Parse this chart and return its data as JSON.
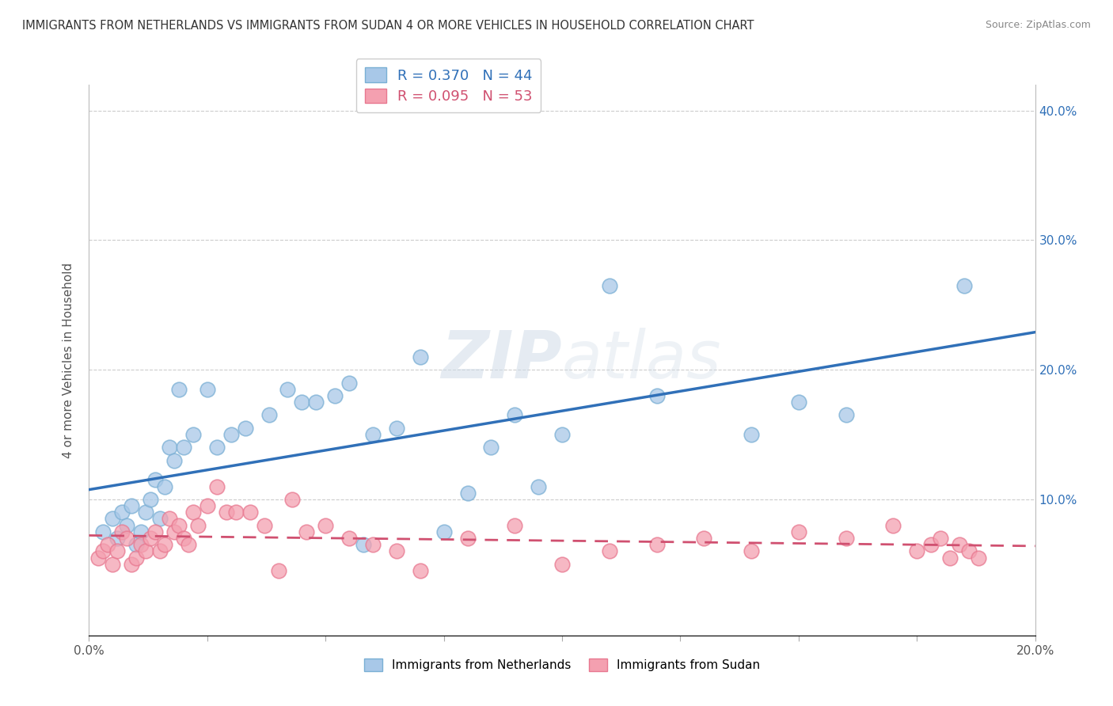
{
  "title": "IMMIGRANTS FROM NETHERLANDS VS IMMIGRANTS FROM SUDAN 4 OR MORE VEHICLES IN HOUSEHOLD CORRELATION CHART",
  "source": "Source: ZipAtlas.com",
  "ylabel": "4 or more Vehicles in Household",
  "xlim": [
    0.0,
    0.2
  ],
  "ylim": [
    -0.005,
    0.42
  ],
  "netherlands_R": 0.37,
  "netherlands_N": 44,
  "sudan_R": 0.095,
  "sudan_N": 53,
  "netherlands_color": "#a8c8e8",
  "sudan_color": "#f4a0b0",
  "netherlands_edge_color": "#7aafd4",
  "sudan_edge_color": "#e87890",
  "netherlands_line_color": "#3070b8",
  "sudan_line_color": "#d05070",
  "watermark_color": "#d0dce8",
  "netherlands_x": [
    0.003,
    0.005,
    0.006,
    0.007,
    0.008,
    0.009,
    0.01,
    0.011,
    0.012,
    0.013,
    0.014,
    0.015,
    0.016,
    0.017,
    0.018,
    0.019,
    0.02,
    0.022,
    0.025,
    0.027,
    0.03,
    0.033,
    0.038,
    0.042,
    0.045,
    0.048,
    0.052,
    0.055,
    0.058,
    0.06,
    0.065,
    0.07,
    0.075,
    0.08,
    0.085,
    0.09,
    0.095,
    0.1,
    0.11,
    0.12,
    0.14,
    0.15,
    0.16,
    0.185
  ],
  "netherlands_y": [
    0.075,
    0.085,
    0.07,
    0.09,
    0.08,
    0.095,
    0.065,
    0.075,
    0.09,
    0.1,
    0.115,
    0.085,
    0.11,
    0.14,
    0.13,
    0.185,
    0.14,
    0.15,
    0.185,
    0.14,
    0.15,
    0.155,
    0.165,
    0.185,
    0.175,
    0.175,
    0.18,
    0.19,
    0.065,
    0.15,
    0.155,
    0.21,
    0.075,
    0.105,
    0.14,
    0.165,
    0.11,
    0.15,
    0.265,
    0.18,
    0.15,
    0.175,
    0.165,
    0.265
  ],
  "sudan_x": [
    0.002,
    0.003,
    0.004,
    0.005,
    0.006,
    0.007,
    0.008,
    0.009,
    0.01,
    0.011,
    0.012,
    0.013,
    0.014,
    0.015,
    0.016,
    0.017,
    0.018,
    0.019,
    0.02,
    0.021,
    0.022,
    0.023,
    0.025,
    0.027,
    0.029,
    0.031,
    0.034,
    0.037,
    0.04,
    0.043,
    0.046,
    0.05,
    0.055,
    0.06,
    0.065,
    0.07,
    0.08,
    0.09,
    0.1,
    0.11,
    0.12,
    0.13,
    0.14,
    0.15,
    0.16,
    0.17,
    0.175,
    0.178,
    0.18,
    0.182,
    0.184,
    0.186,
    0.188
  ],
  "sudan_y": [
    0.055,
    0.06,
    0.065,
    0.05,
    0.06,
    0.075,
    0.07,
    0.05,
    0.055,
    0.065,
    0.06,
    0.07,
    0.075,
    0.06,
    0.065,
    0.085,
    0.075,
    0.08,
    0.07,
    0.065,
    0.09,
    0.08,
    0.095,
    0.11,
    0.09,
    0.09,
    0.09,
    0.08,
    0.045,
    0.1,
    0.075,
    0.08,
    0.07,
    0.065,
    0.06,
    0.045,
    0.07,
    0.08,
    0.05,
    0.06,
    0.065,
    0.07,
    0.06,
    0.075,
    0.07,
    0.08,
    0.06,
    0.065,
    0.07,
    0.055,
    0.065,
    0.06,
    0.055
  ]
}
